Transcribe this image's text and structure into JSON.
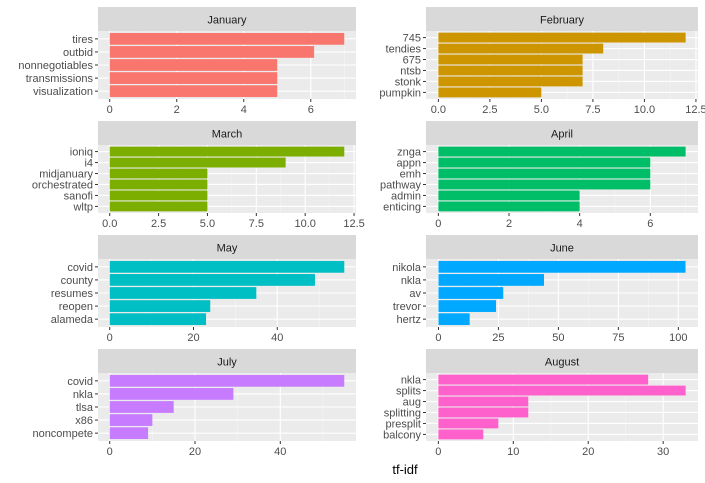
{
  "chart_data": {
    "type": "bar",
    "orientation": "horizontal",
    "xlabel": "tf-idf",
    "grid": true,
    "facets": [
      {
        "title": "January",
        "color": "#F8766D",
        "xlim": [
          -0.35,
          7.35
        ],
        "ticks": [
          0,
          2,
          4,
          6
        ],
        "tick_labels": [
          "0",
          "2",
          "4",
          "6"
        ],
        "categories": [
          "tires",
          "outbid",
          "nonnegotiables",
          "transmissions",
          "visualization"
        ],
        "values": [
          7,
          6.1,
          5,
          5,
          5
        ]
      },
      {
        "title": "February",
        "color": "#CD9600",
        "xlim": [
          -0.6,
          12.6
        ],
        "ticks": [
          0,
          2.5,
          5,
          7.5,
          10,
          12.5
        ],
        "tick_labels": [
          "0.0",
          "2.5",
          "5.0",
          "7.5",
          "10.0",
          "12.5"
        ],
        "categories": [
          "745",
          "tendies",
          "675",
          "ntsb",
          "stonk",
          "pumpkin"
        ],
        "values": [
          12,
          8,
          7,
          7,
          7,
          5
        ]
      },
      {
        "title": "March",
        "color": "#7CAE00",
        "xlim": [
          -0.6,
          12.6
        ],
        "ticks": [
          0,
          2.5,
          5,
          7.5,
          10,
          12.5
        ],
        "tick_labels": [
          "0.0",
          "2.5",
          "5.0",
          "7.5",
          "10.0",
          "12.5"
        ],
        "categories": [
          "ioniq",
          "i4",
          "midjanuary",
          "orchestrated",
          "sanofi",
          "wltp"
        ],
        "values": [
          12,
          9,
          5,
          5,
          5,
          5
        ]
      },
      {
        "title": "April",
        "color": "#00BE67",
        "xlim": [
          -0.35,
          7.35
        ],
        "ticks": [
          0,
          2,
          4,
          6
        ],
        "tick_labels": [
          "0",
          "2",
          "4",
          "6"
        ],
        "categories": [
          "znga",
          "appn",
          "emh",
          "pathway",
          "admin",
          "enticing"
        ],
        "values": [
          7,
          6,
          6,
          6,
          4,
          4
        ]
      },
      {
        "title": "May",
        "color": "#00BFC4",
        "xlim": [
          -2.8,
          58.8
        ],
        "ticks": [
          0,
          20,
          40
        ],
        "tick_labels": [
          "0",
          "20",
          "40"
        ],
        "categories": [
          "covid",
          "county",
          "resumes",
          "reopen",
          "alameda"
        ],
        "values": [
          56,
          49,
          35,
          24,
          23
        ]
      },
      {
        "title": "June",
        "color": "#00A9FF",
        "xlim": [
          -5.2,
          108.2
        ],
        "ticks": [
          0,
          25,
          50,
          75,
          100
        ],
        "tick_labels": [
          "0",
          "25",
          "50",
          "75",
          "100"
        ],
        "categories": [
          "nikola",
          "nkla",
          "av",
          "trevor",
          "hertz"
        ],
        "values": [
          103,
          44,
          27,
          24,
          13
        ]
      },
      {
        "title": "July",
        "color": "#C77CFF",
        "xlim": [
          -2.75,
          57.75
        ],
        "ticks": [
          0,
          20,
          40
        ],
        "tick_labels": [
          "0",
          "20",
          "40"
        ],
        "categories": [
          "covid",
          "nkla",
          "tlsa",
          "x86",
          "noncompete"
        ],
        "values": [
          55,
          29,
          15,
          10,
          9
        ]
      },
      {
        "title": "August",
        "color": "#FF61CC",
        "xlim": [
          -1.65,
          34.65
        ],
        "ticks": [
          0,
          10,
          20,
          30
        ],
        "tick_labels": [
          "0",
          "10",
          "20",
          "30"
        ],
        "categories": [
          "nkla",
          "splits",
          "aug",
          "splitting",
          "presplit",
          "balcony"
        ],
        "values": [
          28,
          33,
          12,
          12,
          8,
          6
        ]
      }
    ]
  }
}
